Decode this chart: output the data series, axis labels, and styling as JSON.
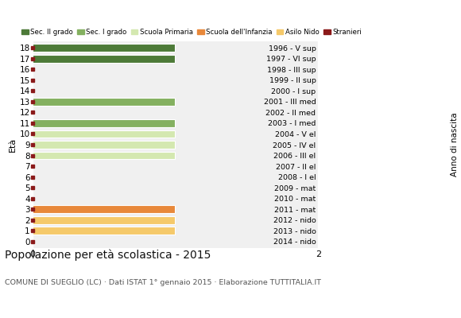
{
  "ages": [
    0,
    1,
    2,
    3,
    4,
    5,
    6,
    7,
    8,
    9,
    10,
    11,
    12,
    13,
    14,
    15,
    16,
    17,
    18
  ],
  "right_labels": [
    "2014 - nido",
    "2013 - nido",
    "2012 - nido",
    "2011 - mat",
    "2010 - mat",
    "2009 - mat",
    "2008 - I el",
    "2007 - II el",
    "2006 - III el",
    "2005 - IV el",
    "2004 - V el",
    "2003 - I med",
    "2002 - II med",
    "2001 - III med",
    "2000 - I sup",
    "1999 - II sup",
    "1998 - III sup",
    "1997 - VI sup",
    "1996 - V sup"
  ],
  "values": [
    0,
    1,
    1,
    1,
    0,
    0,
    0,
    0,
    1,
    1,
    1,
    1,
    0,
    1,
    0,
    0,
    0,
    1,
    1
  ],
  "bar_colors": [
    "#c8a028",
    "#f5c96a",
    "#f5c96a",
    "#e8883a",
    "#c8a028",
    "#c8a028",
    "#d4e8b0",
    "#d4e8b0",
    "#d4e8b0",
    "#d4e8b0",
    "#d4e8b0",
    "#84b060",
    "#c8a028",
    "#84b060",
    "#c8a028",
    "#c8a028",
    "#c8a028",
    "#4d7a38",
    "#4d7a38"
  ],
  "stranieri_color": "#8b1a1a",
  "bg_color": "#ffffff",
  "plot_bg": "#f0f0f0",
  "title": "Popolazione per età scolastica - 2015",
  "subtitle": "COMUNE DI SUEGLIO (LC) · Dati ISTAT 1° gennaio 2015 · Elaborazione TUTTITALIA.IT",
  "legend_labels": [
    "Sec. II grado",
    "Sec. I grado",
    "Scuola Primaria",
    "Scuola dell'Infanzia",
    "Asilo Nido",
    "Stranieri"
  ],
  "legend_colors": [
    "#4d7a38",
    "#84b060",
    "#d4e8b0",
    "#e8883a",
    "#f5c96a",
    "#8b1a1a"
  ],
  "xlim": [
    0,
    2
  ],
  "xticks": [
    0,
    2
  ],
  "ylabel": "Età",
  "right_ylabel": "Anno di nascita",
  "bar_height": 0.72
}
